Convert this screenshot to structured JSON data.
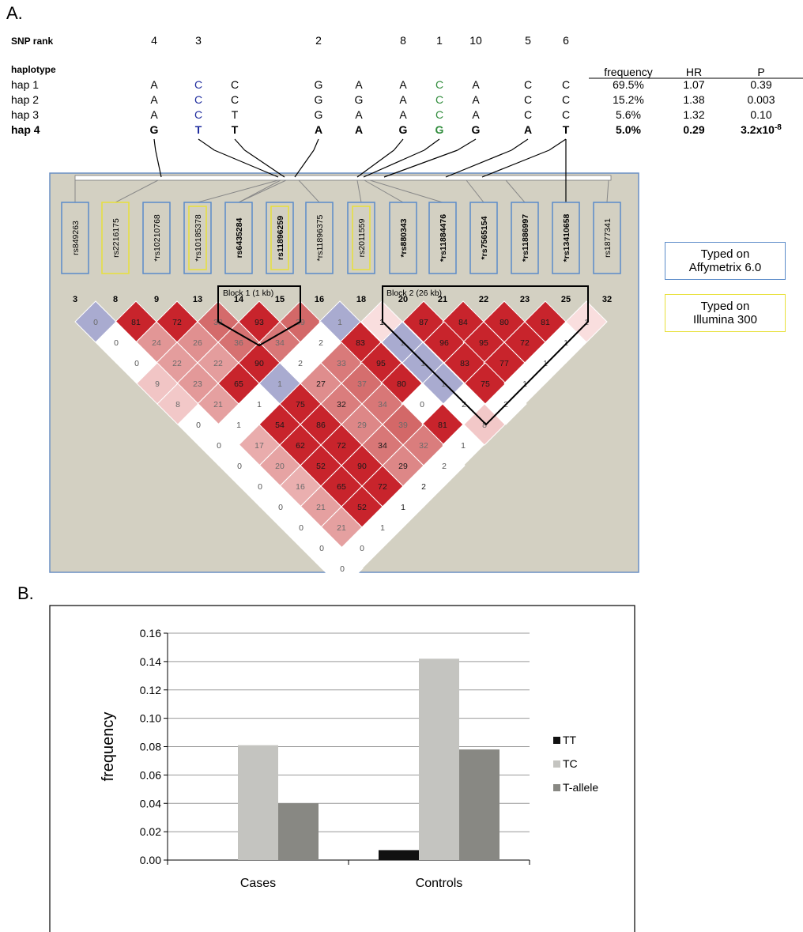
{
  "panel_a": {
    "letter": "A.",
    "snp_rank_label": "SNP rank",
    "haplotype_label": "haplotype",
    "col_headers": [
      "frequency",
      "HR",
      "P"
    ],
    "ranks": [
      "4",
      "3",
      "",
      "2",
      "",
      "8",
      "1",
      "10",
      "5",
      "6"
    ],
    "allele_colors": [
      "#000000",
      "#1f2c9e",
      "#000000",
      "#000000",
      "#000000",
      "#000000",
      "#2e8b3a",
      "#000000",
      "#000000",
      "#000000"
    ],
    "haplotypes": [
      {
        "name": "hap 1",
        "alleles": [
          "A",
          "C",
          "C",
          "G",
          "A",
          "A",
          "C",
          "A",
          "C",
          "C"
        ],
        "frequency": "69.5%",
        "hr": "1.07",
        "p": "0.39",
        "bold": false
      },
      {
        "name": "hap 2",
        "alleles": [
          "A",
          "C",
          "C",
          "G",
          "G",
          "A",
          "C",
          "A",
          "C",
          "C"
        ],
        "frequency": "15.2%",
        "hr": "1.38",
        "p": "0.003",
        "bold": false
      },
      {
        "name": "hap 3",
        "alleles": [
          "A",
          "C",
          "T",
          "G",
          "A",
          "A",
          "C",
          "A",
          "C",
          "C"
        ],
        "frequency": "5.6%",
        "hr": "1.32",
        "p": "0.10",
        "bold": false
      },
      {
        "name": "hap 4",
        "alleles": [
          "G",
          "T",
          "T",
          "A",
          "A",
          "G",
          "G",
          "G",
          "A",
          "T"
        ],
        "frequency": "5.0%",
        "hr": "0.29",
        "p": "3.2x10",
        "p_exp": "-8",
        "bold": true
      }
    ],
    "snps": [
      {
        "id": "rs849263",
        "star": false,
        "platform": "affy",
        "bold": false
      },
      {
        "id": "rs2216175",
        "star": false,
        "platform": "illumina",
        "bold": false
      },
      {
        "id": "rs10210768",
        "star": true,
        "platform": "affy",
        "bold": false
      },
      {
        "id": "rs10185378",
        "star": true,
        "platform": "both",
        "bold": false
      },
      {
        "id": "rs6435284",
        "star": false,
        "platform": "affy",
        "bold": true
      },
      {
        "id": "rs11896259",
        "star": false,
        "platform": "both",
        "bold": true
      },
      {
        "id": "rs11896375",
        "star": true,
        "platform": "affy",
        "bold": false
      },
      {
        "id": "rs2011559",
        "star": false,
        "platform": "both",
        "bold": false
      },
      {
        "id": "rs880343",
        "star": true,
        "platform": "affy",
        "bold": true
      },
      {
        "id": "rs11884476",
        "star": true,
        "platform": "affy",
        "bold": true
      },
      {
        "id": "rs7565154",
        "star": true,
        "platform": "affy",
        "bold": true
      },
      {
        "id": "rs11886997",
        "star": true,
        "platform": "affy",
        "bold": true
      },
      {
        "id": "rs13410658",
        "star": true,
        "platform": "affy",
        "bold": true
      },
      {
        "id": "rs1877341",
        "star": false,
        "platform": "affy",
        "bold": false
      }
    ],
    "marker_numbers": [
      "3",
      "8",
      "9",
      "13",
      "14",
      "15",
      "16",
      "18",
      "20",
      "21",
      "22",
      "23",
      "25",
      "32"
    ],
    "block1_label": "Block 1 (1 kb)",
    "block2_label": "Block 2 (26 kb)",
    "legend_affy": [
      "Typed on",
      "Affymetrix 6.0"
    ],
    "legend_illumina": [
      "Typed on",
      "Illumina 300"
    ],
    "colors": {
      "affy": "#5b8bc9",
      "illumina": "#e8e03a",
      "panel_bg": "#d3d0c2",
      "ld_red": "#c8242c",
      "ld_blue": "#a9abd0"
    },
    "ld_matrix": [
      [
        0,
        81,
        72,
        38,
        93,
        39,
        1,
        1,
        87,
        84,
        80,
        81,
        1
      ],
      [
        0,
        24,
        26,
        36,
        34,
        2,
        83,
        1,
        96,
        95,
        72,
        1
      ],
      [
        0,
        22,
        22,
        90,
        2,
        33,
        95,
        1,
        83,
        77,
        1
      ],
      [
        9,
        23,
        65,
        1,
        27,
        37,
        80,
        1,
        75,
        1
      ],
      [
        8,
        21,
        1,
        75,
        32,
        34,
        0,
        2,
        2
      ],
      [
        0,
        1,
        54,
        86,
        29,
        39,
        81,
        8
      ],
      [
        0,
        17,
        62,
        72,
        34,
        32,
        1
      ],
      [
        0,
        20,
        52,
        90,
        29,
        2
      ],
      [
        0,
        16,
        65,
        72,
        2
      ],
      [
        0,
        21,
        52,
        1
      ],
      [
        0,
        21,
        1
      ],
      [
        0,
        0
      ],
      [
        0
      ]
    ],
    "ld_blue_cells": [
      [
        0,
        0
      ],
      [
        0,
        6
      ],
      [
        1,
        7
      ],
      [
        2,
        7
      ],
      [
        3,
        3
      ],
      [
        3,
        7
      ]
    ],
    "ld_dark_cells": [
      [
        0,
        2
      ],
      [
        0,
        4
      ],
      [
        0,
        7
      ],
      [
        0,
        8
      ],
      [
        0,
        9
      ],
      [
        0,
        10
      ],
      [
        0,
        11
      ],
      [
        1,
        6
      ],
      [
        1,
        8
      ],
      [
        1,
        9
      ],
      [
        1,
        10
      ],
      [
        2,
        3
      ],
      [
        2,
        6
      ],
      [
        2,
        8
      ],
      [
        2,
        9
      ],
      [
        3,
        2
      ],
      [
        3,
        4
      ],
      [
        3,
        6
      ],
      [
        3,
        8
      ],
      [
        4,
        3
      ],
      [
        4,
        4
      ],
      [
        5,
        3
      ],
      [
        5,
        6
      ],
      [
        6,
        3
      ],
      [
        6,
        4
      ],
      [
        7,
        3
      ],
      [
        7,
        4
      ],
      [
        8,
        3
      ],
      [
        8,
        4
      ],
      [
        9,
        3
      ]
    ]
  },
  "panel_b": {
    "letter": "B."
  },
  "chart_data": {
    "type": "bar",
    "categories": [
      "Cases",
      "Controls"
    ],
    "series": [
      {
        "name": "TT",
        "values": [
          0.0,
          0.007
        ],
        "color": "#111111"
      },
      {
        "name": "TC",
        "values": [
          0.081,
          0.142
        ],
        "color": "#c4c4c0"
      },
      {
        "name": "T-allele",
        "values": [
          0.04,
          0.078
        ],
        "color": "#888883"
      }
    ],
    "ylabel": "frequency",
    "xlabel": "",
    "ylim": [
      0,
      0.16
    ],
    "yticks": [
      "0.00",
      "0.02",
      "0.04",
      "0.06",
      "0.08",
      "0.10",
      "0.12",
      "0.14",
      "0.16"
    ],
    "grid": true,
    "legend": "right"
  }
}
